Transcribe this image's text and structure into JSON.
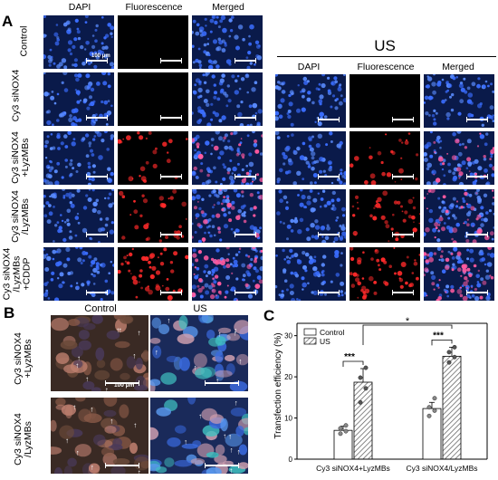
{
  "panel_a": {
    "letter": "A",
    "columns": [
      "DAPI",
      "Fluorescence",
      "Merged"
    ],
    "rows": [
      "Control",
      "Cy3 siNOX4",
      "Cy3 siNOX4\n+LyzMBs",
      "Cy3 siNOX4\n/LyzMBs",
      "Cy3 siNOX4\n/LyzMBs\n+CDDP"
    ],
    "scale_label": "100 μm",
    "us_title": "US",
    "us_columns": [
      "DAPI",
      "Fluorescence",
      "Merged"
    ]
  },
  "panel_b": {
    "letter": "B",
    "columns": [
      "Control",
      "US"
    ],
    "rows": [
      "Cy3 siNOX4\n+LyzMBs",
      "Cy3 siNOX4\n/LyzMBs"
    ],
    "scale_label": "100 μm"
  },
  "panel_c": {
    "letter": "C",
    "significance_top": "*",
    "significance_pair": "***"
  },
  "colors": {
    "dapi_bg": "#0a1a4a",
    "dapi_cell": "#3a6dff",
    "red_cell": "#ff2a2a",
    "bar_control": "#ffffff",
    "bar_us_hatch": "#555555"
  },
  "chart_data": {
    "type": "bar",
    "categories": [
      "Cy3 siNOX4+LyzMBs",
      "Cy3 siNOX4/LyzMBs"
    ],
    "series": [
      {
        "name": "Control",
        "values": [
          7,
          12.3
        ],
        "errors": [
          1,
          1.5
        ],
        "points": [
          [
            6.2,
            6.8,
            7.5,
            8.2
          ],
          [
            10.5,
            11.8,
            12.6,
            14.8
          ]
        ]
      },
      {
        "name": "US",
        "values": [
          18.7,
          25
        ],
        "errors": [
          3.3,
          2.2
        ],
        "points": [
          [
            13.8,
            17.2,
            19.8,
            22.2
          ],
          [
            23.5,
            24.8,
            26,
            27.2
          ]
        ]
      }
    ],
    "ylabel": "Transfection efficiency (%)",
    "ylim": [
      0,
      33
    ],
    "yticks": [
      0,
      10,
      20,
      30
    ],
    "legend": "top-left",
    "grid": false
  }
}
